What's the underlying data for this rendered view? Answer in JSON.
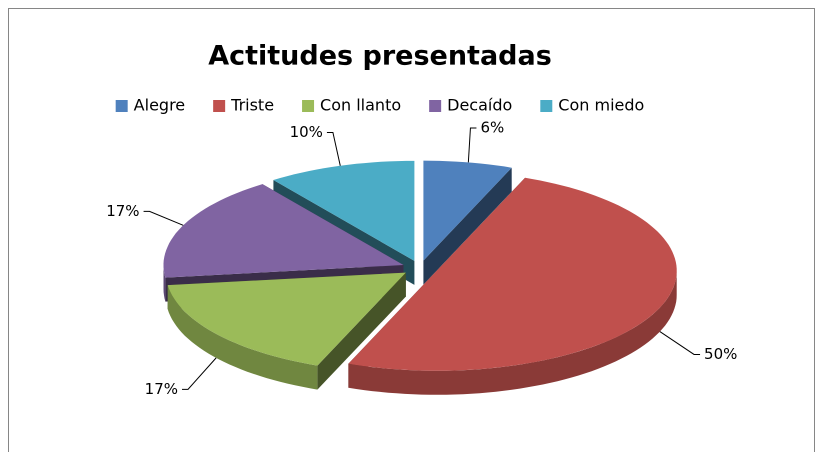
{
  "chart_data": {
    "type": "pie",
    "title": "Actitudes presentadas",
    "categories": [
      "Alegre",
      "Triste",
      "Con llanto",
      "Decaído",
      "Con miedo"
    ],
    "values": [
      6,
      50,
      17,
      17,
      10
    ],
    "value_labels": [
      "6%",
      "50%",
      "17%",
      "17%",
      "10%"
    ],
    "colors": [
      "#4f81bd",
      "#c0504d",
      "#9bbb59",
      "#8064a2",
      "#4bacc6"
    ],
    "legend": "top",
    "exploded": true,
    "three_d": true
  }
}
